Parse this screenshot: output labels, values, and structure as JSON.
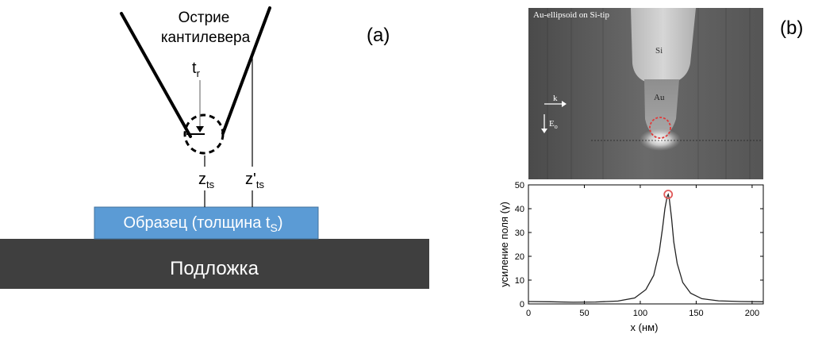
{
  "panel_a": {
    "label": "(a)",
    "tip_title_line1": "Острие",
    "tip_title_line2": "кантилевера",
    "t_r": {
      "main": "t",
      "sub": "r"
    },
    "z_ts": {
      "main": "z",
      "sub": "ts"
    },
    "z_prime_ts": {
      "main": "z'",
      "sub": "ts"
    },
    "sample": {
      "main": "Образец (толщина t",
      "sub": "S",
      "tail": ")"
    },
    "substrate": "Подложка",
    "colors": {
      "sample": "#5b9bd5",
      "substrate": "#3f3f3f",
      "lines": "#000000"
    }
  },
  "panel_b": {
    "label": "(b)",
    "sim": {
      "title": "Au-ellipsoid on Si-tip",
      "si_label": "Si",
      "au_label": "Au",
      "k_label": "k",
      "e0_label": "E",
      "e0_sub": "o"
    },
    "chart_data": {
      "type": "line",
      "xlabel": "x (нм)",
      "ylabel": "усиление поля (γ)",
      "xlim": [
        0,
        210
      ],
      "ylim": [
        0,
        50
      ],
      "xticks": [
        0,
        50,
        100,
        150,
        200
      ],
      "yticks": [
        0,
        10,
        20,
        30,
        40,
        50
      ],
      "series": [
        {
          "x": [
            0,
            20,
            40,
            60,
            80,
            95,
            105,
            112,
            117,
            120,
            122,
            124,
            125,
            126,
            128,
            130,
            133,
            138,
            145,
            155,
            170,
            190,
            210
          ],
          "y": [
            1,
            0.9,
            0.7,
            0.8,
            1.2,
            2.5,
            6,
            12,
            22,
            32,
            40,
            45,
            46,
            44,
            36,
            26,
            17,
            9,
            4.5,
            2.2,
            1.3,
            1,
            0.9
          ]
        }
      ],
      "marker": {
        "x": 125,
        "y": 46
      },
      "grid": false
    },
    "colors": {
      "marker": "#e05a5a",
      "line": "#222222"
    }
  }
}
